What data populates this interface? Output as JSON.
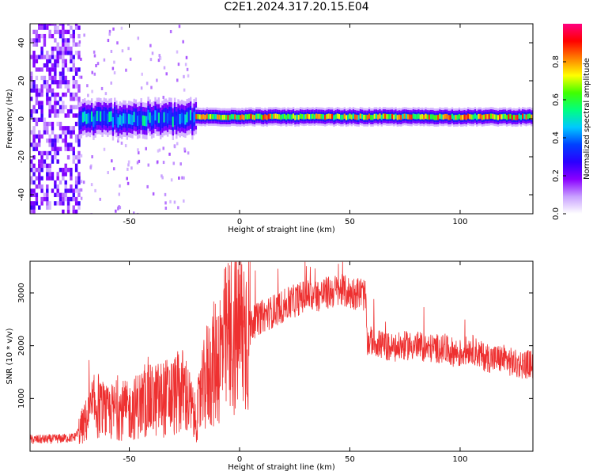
{
  "title": "C2E1.2024.317.20.15.E04",
  "chart_data": [
    {
      "type": "heatmap",
      "title": "",
      "xlabel": "Height of straight line (km)",
      "ylabel": "Frequency (Hz)",
      "xlim": [
        -95,
        133
      ],
      "ylim": [
        -50,
        50
      ],
      "xticks": [
        -50,
        0,
        50,
        100
      ],
      "yticks": [
        -40,
        -20,
        0,
        20,
        40
      ],
      "colorbar": {
        "label": "Normalized spectral amplitude",
        "range": [
          0,
          1
        ],
        "ticks": [
          "0.0",
          "0.2",
          "0.4",
          "0.6",
          "0.8"
        ],
        "colormap": [
          "#ffffff",
          "#c8a0ff",
          "#8a00ff",
          "#2a00ff",
          "#0040ff",
          "#00c8ff",
          "#00ff80",
          "#40ff00",
          "#ffff00",
          "#ff8000",
          "#ff0000",
          "#ff0080"
        ]
      },
      "regions": [
        {
          "x_range": [
            -95,
            -73
          ],
          "description_value": "broadband scattered amplitude 0.1-0.25 over full frequency range"
        },
        {
          "x_range": [
            -73,
            -20
          ],
          "freq_center": 0,
          "freq_halfwidth": 6,
          "peak_amplitude": 0.55
        },
        {
          "x_range": [
            -20,
            133
          ],
          "freq_center": 1,
          "freq_halfwidth": 3,
          "peak_amplitude": 0.9
        }
      ],
      "grid": false
    },
    {
      "type": "line",
      "title": "",
      "xlabel": "Height of straight line (km)",
      "ylabel": "SNR (10 * v/v)",
      "xlim": [
        -95,
        133
      ],
      "ylim": [
        0,
        3600
      ],
      "xticks": [
        -50,
        0,
        50,
        100
      ],
      "yticks": [
        1000,
        2000,
        3000
      ],
      "series": [
        {
          "color": "#ee3030",
          "x": [
            -95,
            -85,
            -75,
            -70,
            -65,
            -60,
            -55,
            -50,
            -45,
            -40,
            -35,
            -30,
            -25,
            -20,
            -15,
            -10,
            -5,
            0,
            5,
            10,
            15,
            20,
            25,
            30,
            35,
            40,
            45,
            50,
            55,
            57,
            58,
            60,
            65,
            70,
            75,
            80,
            85,
            90,
            95,
            100,
            105,
            110,
            115,
            120,
            125,
            133
          ],
          "y": [
            220,
            230,
            260,
            550,
            900,
            700,
            800,
            750,
            900,
            950,
            1000,
            1050,
            1150,
            600,
            1400,
            1750,
            2150,
            2300,
            2400,
            2550,
            2650,
            2750,
            2850,
            2950,
            2950,
            3000,
            3050,
            3000,
            3000,
            2950,
            2050,
            2100,
            2000,
            1950,
            2000,
            2000,
            1950,
            1950,
            1900,
            1850,
            1950,
            1800,
            1750,
            1750,
            1650,
            1650
          ]
        }
      ],
      "grid": false
    }
  ]
}
